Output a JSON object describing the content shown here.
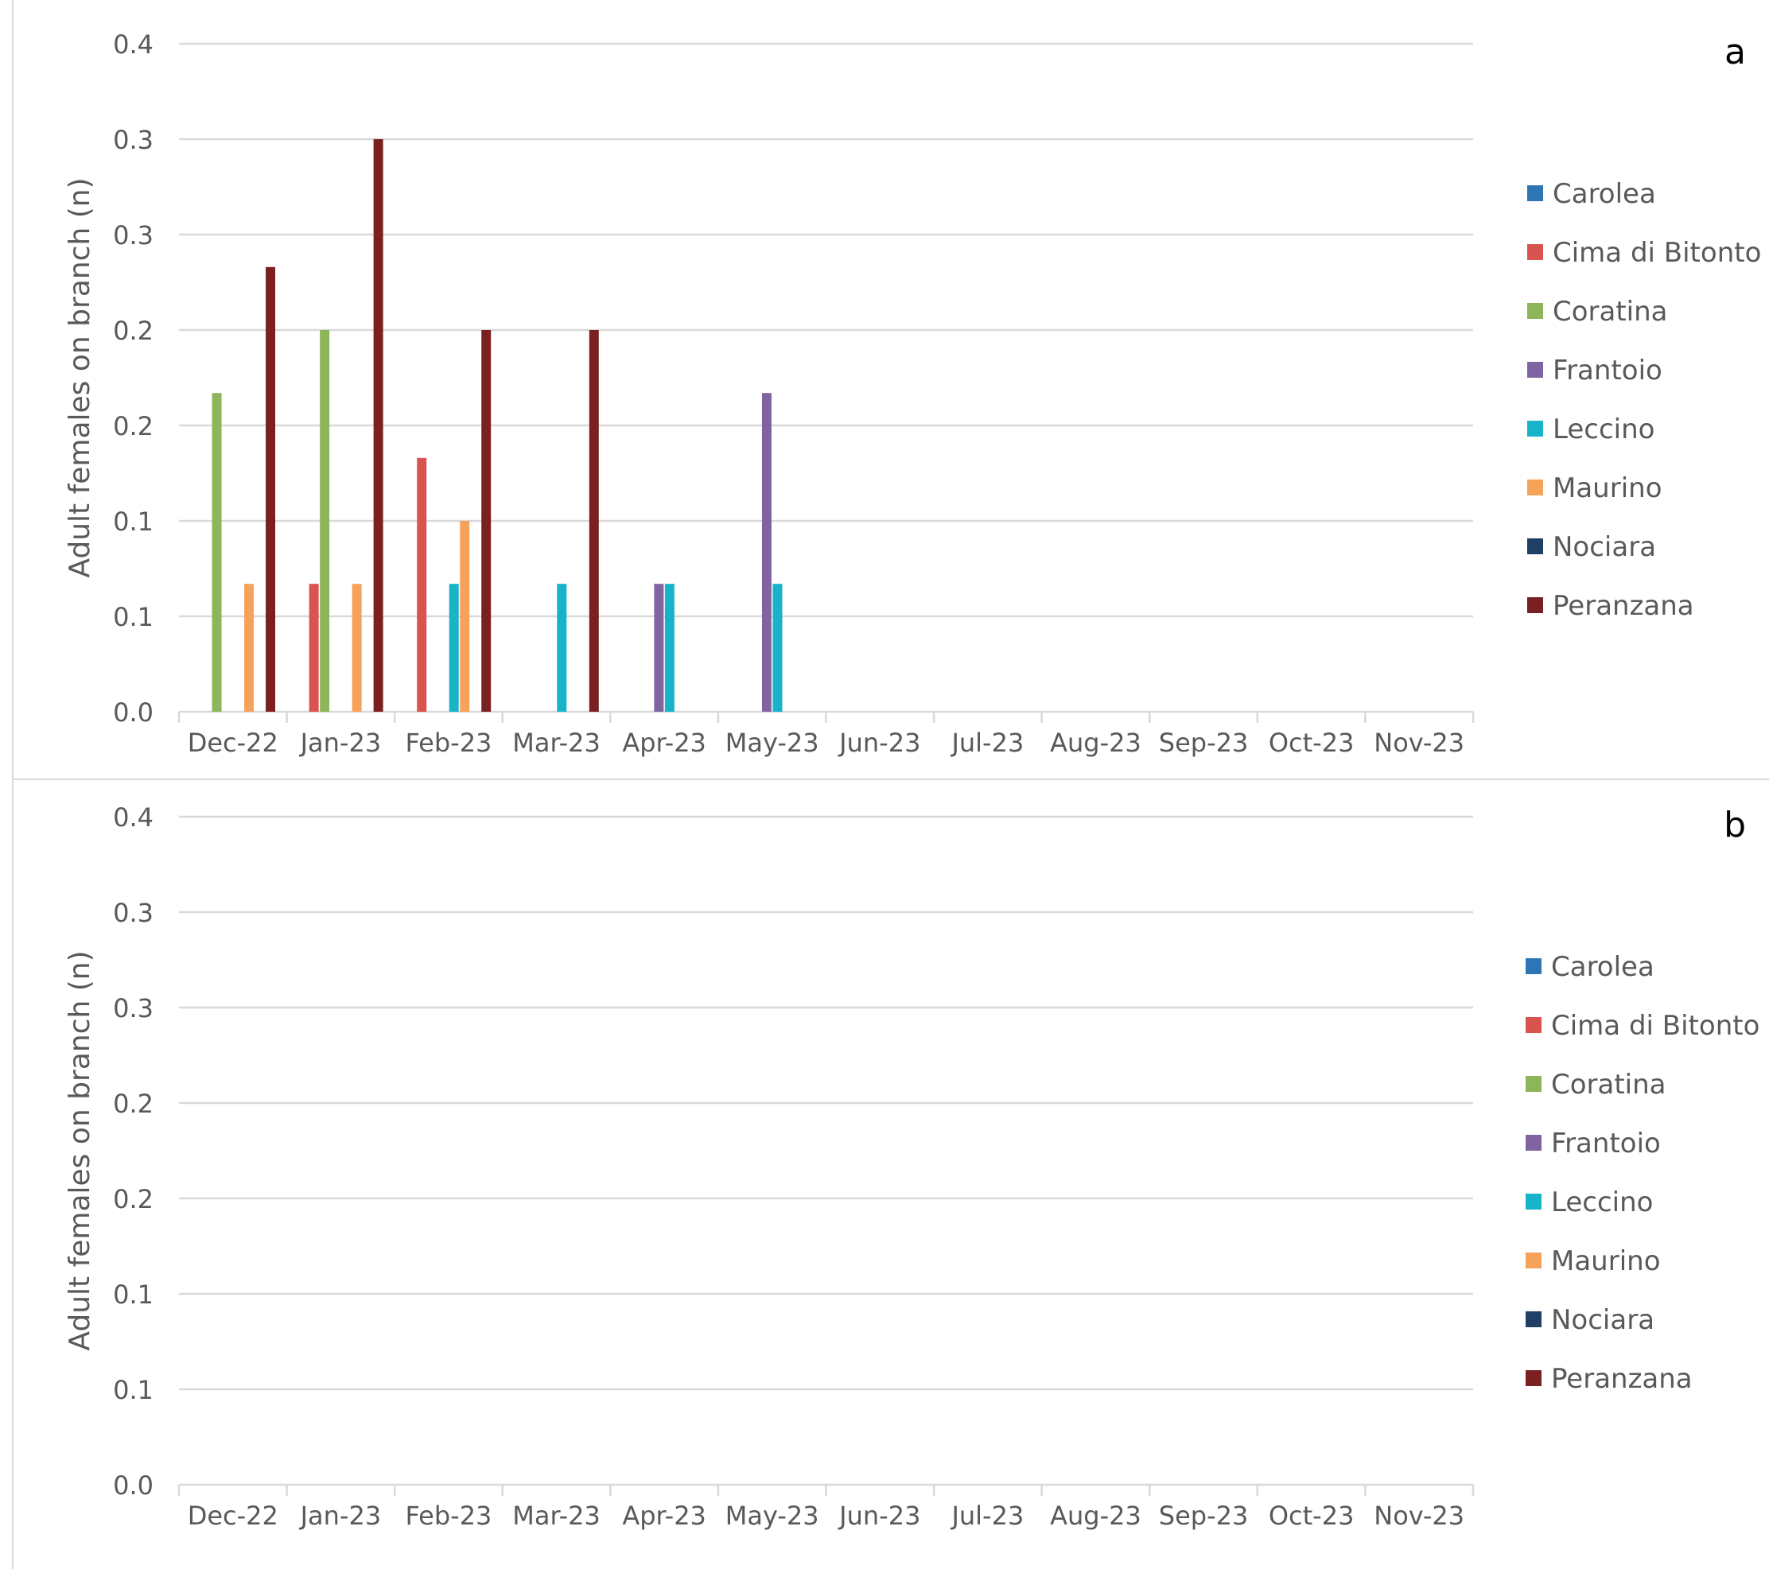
{
  "chart_data": [
    {
      "panel_label": "a",
      "type": "bar",
      "ylabel": "Adult females on branch (n)",
      "ytick_labels": [
        "0.0",
        "0.1",
        "0.1",
        "0.2",
        "0.2",
        "0.3",
        "0.3",
        "0.4"
      ],
      "y_tick_values": [
        0,
        0.05,
        0.1,
        0.15,
        0.2,
        0.25,
        0.3,
        0.35
      ],
      "ylim": [
        0,
        0.35
      ],
      "grid": true,
      "legend_position": "right",
      "categories": [
        "Dec-22",
        "Jan-23",
        "Feb-23",
        "Mar-23",
        "Apr-23",
        "May-23",
        "Jun-23",
        "Jul-23",
        "Aug-23",
        "Sep-23",
        "Oct-23",
        "Nov-23"
      ],
      "series": [
        {
          "name": "Carolea",
          "color": "#2E75B6",
          "values": [
            0,
            0,
            0,
            0,
            0,
            0,
            0,
            0,
            0,
            0,
            0,
            0
          ]
        },
        {
          "name": "Cima di Bitonto",
          "color": "#D9534F",
          "values": [
            0,
            0.067,
            0.133,
            0,
            0,
            0,
            0,
            0,
            0,
            0,
            0,
            0
          ]
        },
        {
          "name": "Coratina",
          "color": "#8DB65B",
          "values": [
            0.167,
            0.2,
            0,
            0,
            0,
            0,
            0,
            0,
            0,
            0,
            0,
            0
          ]
        },
        {
          "name": "Frantoio",
          "color": "#8064A2",
          "values": [
            0,
            0,
            0,
            0,
            0.067,
            0.167,
            0,
            0,
            0,
            0,
            0,
            0
          ]
        },
        {
          "name": "Leccino",
          "color": "#17B3C9",
          "values": [
            0,
            0,
            0.067,
            0.067,
            0.067,
            0.067,
            0,
            0,
            0,
            0,
            0,
            0
          ]
        },
        {
          "name": "Maurino",
          "color": "#F7A25B",
          "values": [
            0.067,
            0.067,
            0.1,
            0,
            0,
            0,
            0,
            0,
            0,
            0,
            0,
            0
          ]
        },
        {
          "name": "Nociara",
          "color": "#1F3F66",
          "values": [
            0,
            0,
            0,
            0,
            0,
            0,
            0,
            0,
            0,
            0,
            0,
            0
          ]
        },
        {
          "name": "Peranzana",
          "color": "#7B2020",
          "values": [
            0.233,
            0.3,
            0.2,
            0.2,
            0,
            0,
            0,
            0,
            0,
            0,
            0,
            0
          ]
        }
      ]
    },
    {
      "panel_label": "b",
      "type": "bar",
      "ylabel": "Adult females on branch (n)",
      "ytick_labels": [
        "0.0",
        "0.1",
        "0.1",
        "0.2",
        "0.2",
        "0.3",
        "0.3",
        "0.4"
      ],
      "y_tick_values": [
        0,
        0.05,
        0.1,
        0.15,
        0.2,
        0.25,
        0.3,
        0.35
      ],
      "ylim": [
        0,
        0.35
      ],
      "grid": true,
      "legend_position": "right",
      "categories": [
        "Dec-22",
        "Jan-23",
        "Feb-23",
        "Mar-23",
        "Apr-23",
        "May-23",
        "Jun-23",
        "Jul-23",
        "Aug-23",
        "Sep-23",
        "Oct-23",
        "Nov-23"
      ],
      "series": [
        {
          "name": "Carolea",
          "color": "#2E75B6",
          "values": [
            0,
            0,
            0,
            0,
            0,
            0,
            0,
            0,
            0,
            0,
            0,
            0
          ]
        },
        {
          "name": "Cima di Bitonto",
          "color": "#D9534F",
          "values": [
            0,
            0,
            0,
            0,
            0,
            0,
            0,
            0,
            0,
            0,
            0,
            0
          ]
        },
        {
          "name": "Coratina",
          "color": "#8DB65B",
          "values": [
            0,
            0,
            0,
            0,
            0,
            0,
            0,
            0,
            0,
            0,
            0,
            0
          ]
        },
        {
          "name": "Frantoio",
          "color": "#8064A2",
          "values": [
            0,
            0,
            0,
            0,
            0,
            0,
            0,
            0,
            0,
            0,
            0,
            0
          ]
        },
        {
          "name": "Leccino",
          "color": "#17B3C9",
          "values": [
            0,
            0,
            0,
            0,
            0,
            0,
            0,
            0,
            0,
            0,
            0,
            0
          ]
        },
        {
          "name": "Maurino",
          "color": "#F7A25B",
          "values": [
            0,
            0,
            0,
            0,
            0,
            0,
            0,
            0,
            0,
            0,
            0,
            0
          ]
        },
        {
          "name": "Nociara",
          "color": "#1F3F66",
          "values": [
            0,
            0,
            0,
            0,
            0,
            0,
            0,
            0,
            0,
            0,
            0,
            0
          ]
        },
        {
          "name": "Peranzana",
          "color": "#7B2020",
          "values": [
            0,
            0,
            0,
            0,
            0,
            0,
            0,
            0,
            0,
            0,
            0,
            0
          ]
        }
      ]
    }
  ]
}
